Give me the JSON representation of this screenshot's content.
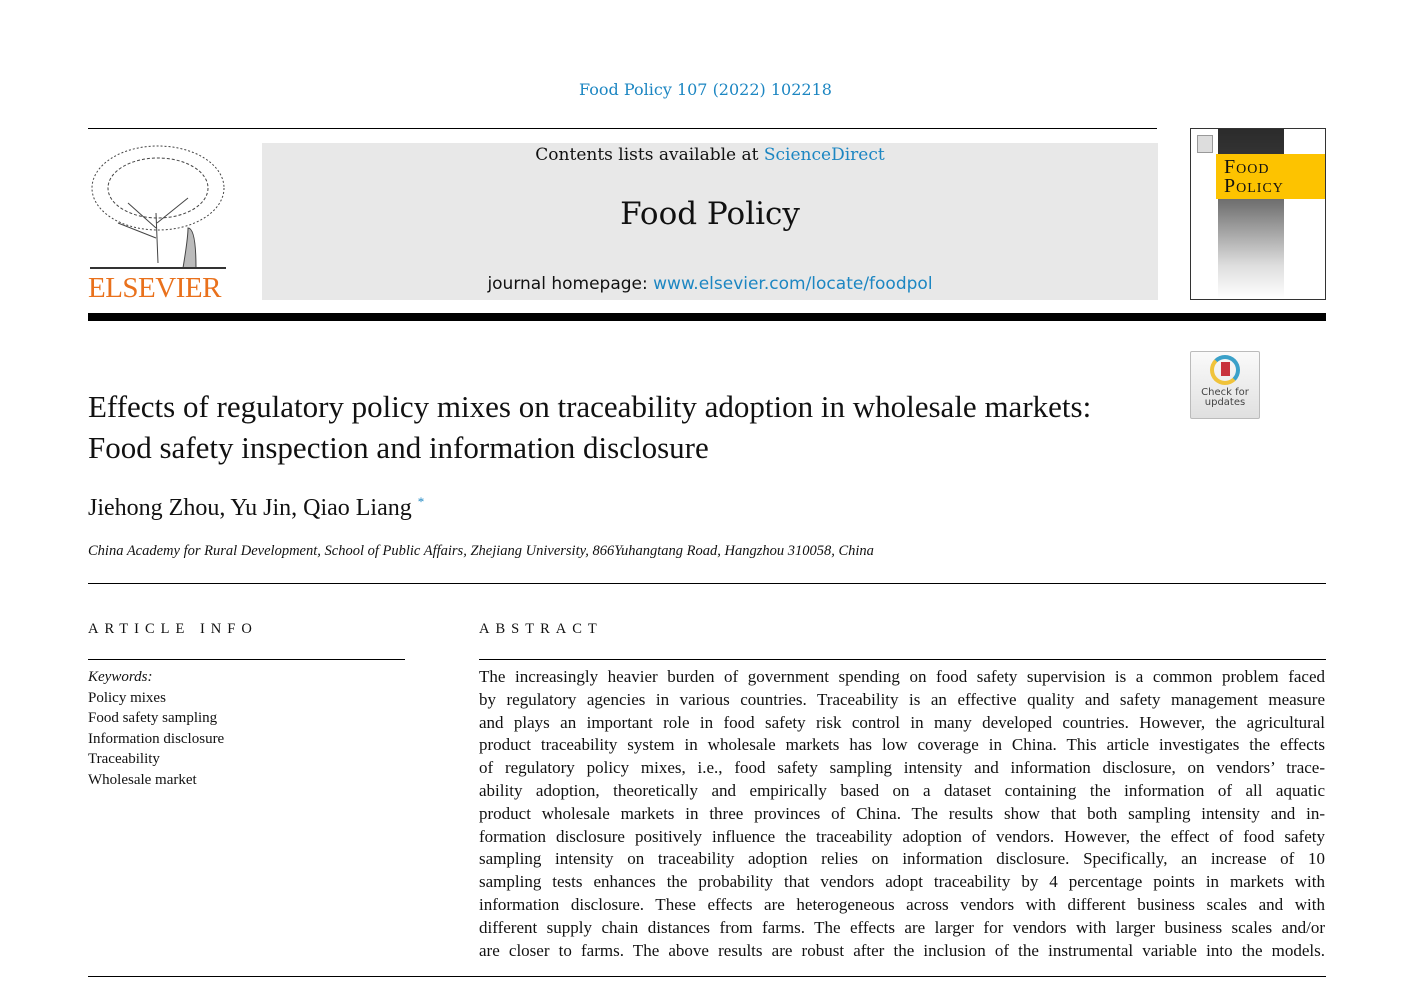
{
  "citation": "Food Policy 107 (2022) 102218",
  "header": {
    "contents_prefix": "Contents lists available at ",
    "sciencedirect": "ScienceDirect",
    "journal_title": "Food Policy",
    "homepage_prefix": "journal homepage: ",
    "homepage_url": "www.elsevier.com/locate/foodpol",
    "publisher": "ELSEVIER",
    "cover_title_1": "Food",
    "cover_title_2": "Policy"
  },
  "check_updates": "Check for updates",
  "colors": {
    "link": "#1c86c2",
    "elsevier": "#e9711c",
    "cover_yellow": "#fdc300"
  },
  "article": {
    "title": "Effects of regulatory policy mixes on traceability adoption in wholesale markets: Food safety inspection and information disclosure",
    "authors": "Jiehong Zhou, Yu Jin, Qiao Liang",
    "author_mark": "*",
    "affiliation": "China Academy for Rural Development, School of Public Affairs, Zhejiang University, 866Yuhangtang Road, Hangzhou 310058, China"
  },
  "info": {
    "heading": "ARTICLE INFO",
    "keywords_label": "Keywords:",
    "keywords": [
      "Policy mixes",
      "Food safety sampling",
      "Information disclosure",
      "Traceability",
      "Wholesale market"
    ]
  },
  "abstract": {
    "heading": "ABSTRACT",
    "lines": [
      "The increasingly heavier burden of government spending on food safety supervision is a common problem faced",
      "by regulatory agencies in various countries. Traceability is an effective quality and safety management measure",
      "and plays an important role in food safety risk control in many developed countries. However, the agricultural",
      "product traceability system in wholesale markets has low coverage in China. This article investigates the effects",
      "of regulatory policy mixes, i.e., food safety sampling intensity and information disclosure, on vendors’ trace-",
      "ability adoption, theoretically and empirically based on a dataset containing the information of all aquatic",
      "product wholesale markets in three provinces of China. The results show that both sampling intensity and in-",
      "formation disclosure positively influence the traceability adoption of vendors. However, the effect of food safety",
      "sampling intensity on traceability adoption relies on information disclosure. Specifically, an increase of 10",
      "sampling tests enhances the probability that vendors adopt traceability by 4 percentage points in markets with",
      "information disclosure. These effects are heterogeneous across vendors with different business scales and with",
      "different supply chain distances from farms. The effects are larger for vendors with larger business scales and/or",
      "are closer to farms. The above results are robust after the inclusion of the instrumental variable into the models."
    ]
  }
}
